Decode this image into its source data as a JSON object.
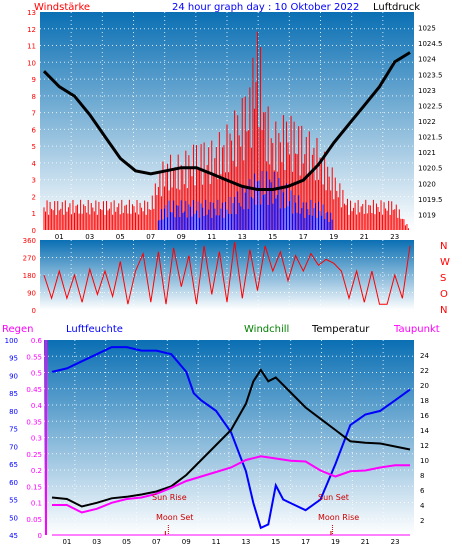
{
  "header": {
    "left": "Windstärke",
    "center": "24 hour graph day : 10 Oktober 2022",
    "right": "Luftdruck"
  },
  "colors": {
    "red": "#ff0000",
    "blue": "#0000ff",
    "black": "#000000",
    "green": "#008000",
    "magenta": "#ff00ff",
    "sky_top": "#0a6fb3",
    "sky_bottom": "#ffffff",
    "dot_grid": "#ffffff"
  },
  "legend": {
    "regen": "Regen",
    "luftfeuchte": "Luftfeuchte",
    "windchill": "Windchill",
    "temperatur": "Temperatur",
    "taupunkt": "Taupunkt"
  },
  "annotations": {
    "sun_rise": "Sun Rise",
    "moon_set": "Moon Set",
    "sun_set": "Sun Set",
    "moon_rise": "Moon Rise",
    "sun_set_short": "Sun Set"
  },
  "compass": [
    "N",
    "W",
    "S",
    "O",
    "N"
  ],
  "chart_data": [
    {
      "type": "line",
      "name": "wind_pressure",
      "x_ticks": [
        "01",
        "03",
        "05",
        "07",
        "09",
        "11",
        "13",
        "15",
        "17",
        "19",
        "21",
        "23"
      ],
      "y_left_ticks": [
        "0",
        "1",
        "2",
        "3",
        "4",
        "5",
        "6",
        "7",
        "8",
        "9",
        "10",
        "11",
        "12",
        "13"
      ],
      "y_left_range": [
        0,
        13
      ],
      "y_right_ticks": [
        "1019",
        "1019.5",
        "1020",
        "1020.5",
        "1021",
        "1021.5",
        "1022",
        "1022.5",
        "1023",
        "1023.5",
        "1024",
        "1024.5",
        "1025"
      ],
      "y_right_range": [
        1018.5,
        1025.5
      ],
      "pressure": {
        "hours": [
          0,
          1,
          2,
          3,
          4,
          5,
          6,
          7,
          8,
          9,
          10,
          11,
          12,
          13,
          14,
          15,
          16,
          17,
          18,
          19,
          20,
          21,
          22,
          23,
          24
        ],
        "values": [
          1023.6,
          1023.1,
          1022.8,
          1022.2,
          1021.5,
          1020.8,
          1020.4,
          1020.3,
          1020.4,
          1020.5,
          1020.5,
          1020.3,
          1020.1,
          1019.9,
          1019.8,
          1019.8,
          1019.9,
          1020.1,
          1020.6,
          1021.3,
          1021.9,
          1022.5,
          1023.1,
          1023.9,
          1024.2
        ]
      },
      "wind_gust": {
        "hours": [
          0,
          1,
          2,
          3,
          4,
          5,
          6,
          7,
          7.5,
          8,
          9,
          10,
          11,
          12,
          13,
          13.5,
          14,
          14.5,
          15,
          16,
          17,
          18,
          19,
          20,
          21,
          22,
          23,
          24
        ],
        "values": [
          1.8,
          1.8,
          1.8,
          1.8,
          1.8,
          1.8,
          1.8,
          1.8,
          3.6,
          4.5,
          4.5,
          5.4,
          5.4,
          6.3,
          8.1,
          9.0,
          13.0,
          8.1,
          6.3,
          7.2,
          6.3,
          5.4,
          3.6,
          1.8,
          1.8,
          1.8,
          1.8,
          0.0
        ]
      },
      "wind_avg": {
        "hours": [
          7.5,
          8,
          9,
          10,
          11,
          12,
          13,
          14,
          15,
          16,
          17,
          18,
          19
        ],
        "values": [
          0.9,
          1.8,
          1.8,
          1.8,
          1.8,
          1.8,
          2.7,
          3.6,
          3.6,
          2.7,
          1.8,
          1.8,
          0.9
        ]
      }
    },
    {
      "type": "line",
      "name": "wind_direction",
      "y_ticks": [
        "0",
        "90",
        "180",
        "270",
        "360"
      ],
      "y_range": [
        0,
        360
      ],
      "hours": [
        0,
        0.5,
        1,
        1.5,
        2,
        2.5,
        3,
        3.5,
        4,
        4.5,
        5,
        5.5,
        6,
        6.5,
        7,
        7.5,
        8,
        8.5,
        9,
        9.5,
        10,
        10.5,
        11,
        11.5,
        12,
        12.5,
        13,
        13.5,
        14,
        14.5,
        15,
        15.5,
        16,
        16.5,
        17,
        17.5,
        18,
        18.5,
        19,
        19.5,
        20,
        20.5,
        21,
        21.5,
        22,
        22.5,
        23,
        23.5,
        24
      ],
      "values": [
        180,
        60,
        200,
        60,
        180,
        40,
        210,
        80,
        200,
        70,
        250,
        30,
        200,
        290,
        40,
        300,
        30,
        320,
        120,
        280,
        30,
        330,
        80,
        300,
        40,
        350,
        60,
        310,
        100,
        330,
        200,
        300,
        150,
        280,
        200,
        290,
        230,
        260,
        240,
        200,
        60,
        200,
        40,
        200,
        30,
        30,
        180,
        60,
        330
      ]
    },
    {
      "type": "line",
      "name": "temperature_humidity",
      "x_ticks": [
        "01",
        "03",
        "05",
        "07",
        "09",
        "11",
        "13",
        "15",
        "17",
        "19",
        "21",
        "23"
      ],
      "y_rain_ticks": [
        "0",
        "0.05",
        "0.1",
        "0.15",
        "0.2",
        "0.25",
        "0.3",
        "0.35",
        "0.4",
        "0.45",
        "0.5",
        "0.55",
        "0.6"
      ],
      "y_rain_range": [
        0,
        0.6
      ],
      "y_humidity_ticks": [
        "45",
        "50",
        "55",
        "60",
        "65",
        "70",
        "75",
        "80",
        "85",
        "90",
        "95",
        "100"
      ],
      "y_humidity_range": [
        45,
        100
      ],
      "y_temp_ticks": [
        "2",
        "4",
        "6",
        "8",
        "10",
        "12",
        "14",
        "16",
        "18",
        "20",
        "22",
        "24"
      ],
      "y_temp_range": [
        0,
        26
      ],
      "humidity": {
        "hours": [
          0,
          1,
          2,
          3,
          4,
          5,
          6,
          7,
          8,
          9,
          9.5,
          10,
          11,
          12,
          13,
          13.5,
          14,
          14.5,
          15,
          15.5,
          16,
          17,
          18,
          19,
          20,
          21,
          22,
          23,
          24
        ],
        "values": [
          91,
          92,
          94,
          96,
          98,
          98,
          97,
          97,
          96,
          91,
          85,
          83,
          80,
          74,
          63,
          54,
          47,
          48,
          59,
          55,
          54,
          52,
          55,
          65,
          76,
          79,
          80,
          83,
          86
        ]
      },
      "temperature": {
        "hours": [
          0,
          1,
          2,
          3,
          4,
          5,
          6,
          7,
          8,
          9,
          10,
          11,
          12,
          13,
          13.5,
          14,
          14.5,
          15,
          16,
          17,
          18,
          19,
          20,
          21,
          22,
          23,
          24
        ],
        "values": [
          5.0,
          4.8,
          3.8,
          4.3,
          4.9,
          5.1,
          5.4,
          5.8,
          6.5,
          8.0,
          10.0,
          12.0,
          14.0,
          17.5,
          20.5,
          22.0,
          20.5,
          21.0,
          19.0,
          17.0,
          15.5,
          14.0,
          12.5,
          12.3,
          12.2,
          11.8,
          11.4
        ]
      },
      "dewpoint": {
        "hours": [
          0,
          1,
          2,
          3,
          4,
          5,
          6,
          7,
          8,
          9,
          10,
          11,
          12,
          13,
          14,
          15,
          16,
          17,
          18,
          19,
          20,
          21,
          22,
          23,
          24
        ],
        "values": [
          4.0,
          4.0,
          3.0,
          3.5,
          4.3,
          4.8,
          5.0,
          5.5,
          6.3,
          7.2,
          7.8,
          8.4,
          9.0,
          10.0,
          10.5,
          10.2,
          9.9,
          9.8,
          8.6,
          7.8,
          8.5,
          8.6,
          9.0,
          9.3,
          9.3
        ]
      },
      "rain": {
        "hours": [
          0,
          24
        ],
        "values": [
          0,
          0
        ]
      },
      "markers": {
        "sun_rise_hour": 7.6,
        "sun_set_hour": 18.7,
        "moon_set_hour": 7.8,
        "moon_rise_hour": 18.8
      }
    }
  ]
}
